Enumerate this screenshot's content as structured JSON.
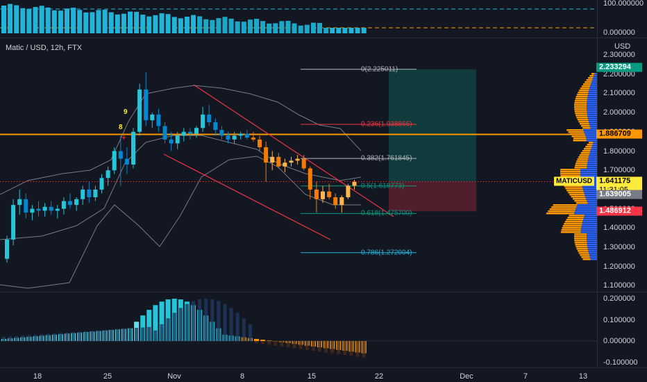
{
  "header": {
    "title": "Matic / USD, 12h, FTX",
    "currency": "USD"
  },
  "top_pane": {
    "axis_labels": [
      "100.000000",
      "0.000000"
    ]
  },
  "price_axis": {
    "labels": [
      "2.300000",
      "2.200000",
      "2.100000",
      "2.000000",
      "1.900000",
      "1.800000",
      "1.700000",
      "1.600000",
      "1.500000",
      "1.400000",
      "1.300000",
      "1.200000",
      "1.100000"
    ]
  },
  "price_tags": {
    "target": "2.233294",
    "level": "1.886709",
    "symbol": "MATICUSD",
    "last": "1.641175",
    "countdown": "11:31:05",
    "avg": "1.639005",
    "stop": "1.486912"
  },
  "fib_levels": [
    {
      "label": "0(2.225011)",
      "value": 2.225011,
      "color": "#b2b5be"
    },
    {
      "label": "0.236(1.938866)",
      "value": 1.938866,
      "color": "#f23645"
    },
    {
      "label": "0.382(1.761845)",
      "value": 1.761845,
      "color": "#b2b5be"
    },
    {
      "label": "0.5(1.618773)",
      "value": 1.618773,
      "color": "#089981"
    },
    {
      "label": "0.618(1.475700)",
      "value": 1.4757,
      "color": "#089981"
    },
    {
      "label": "0.786(1.272004)",
      "value": 1.272004,
      "color": "#22b3d8"
    }
  ],
  "td_marks": [
    "9",
    "8"
  ],
  "oscillator_axis": {
    "labels": [
      "0.200000",
      "0.100000",
      "0.000000",
      "-0.100000"
    ]
  },
  "time_axis": {
    "labels": [
      "18",
      "25",
      "Nov",
      "8",
      "15",
      "22",
      "Dec",
      "7",
      "13"
    ]
  },
  "chart_data": {
    "type": "candlestick",
    "symbol": "MATICUSD",
    "timeframe": "12h",
    "ylim": [
      1.1,
      2.35
    ],
    "candles_ohlc": [
      [
        1.24,
        1.36,
        1.22,
        1.34
      ],
      [
        1.34,
        1.55,
        1.31,
        1.52
      ],
      [
        1.52,
        1.6,
        1.47,
        1.55
      ],
      [
        1.55,
        1.58,
        1.45,
        1.48
      ],
      [
        1.48,
        1.52,
        1.44,
        1.5
      ],
      [
        1.5,
        1.54,
        1.46,
        1.49
      ],
      [
        1.49,
        1.53,
        1.46,
        1.51
      ],
      [
        1.51,
        1.54,
        1.47,
        1.49
      ],
      [
        1.49,
        1.52,
        1.45,
        1.5
      ],
      [
        1.5,
        1.56,
        1.47,
        1.54
      ],
      [
        1.54,
        1.58,
        1.5,
        1.52
      ],
      [
        1.52,
        1.56,
        1.49,
        1.55
      ],
      [
        1.55,
        1.62,
        1.52,
        1.6
      ],
      [
        1.6,
        1.64,
        1.53,
        1.56
      ],
      [
        1.56,
        1.62,
        1.54,
        1.6
      ],
      [
        1.6,
        1.68,
        1.58,
        1.66
      ],
      [
        1.66,
        1.72,
        1.62,
        1.7
      ],
      [
        1.7,
        1.82,
        1.68,
        1.8
      ],
      [
        1.8,
        1.88,
        1.62,
        1.76
      ],
      [
        1.76,
        1.82,
        1.68,
        1.73
      ],
      [
        1.73,
        1.92,
        1.71,
        1.9
      ],
      [
        1.9,
        2.15,
        1.88,
        2.12
      ],
      [
        2.12,
        2.21,
        1.93,
        1.96
      ],
      [
        1.96,
        2.0,
        1.92,
        1.99
      ],
      [
        1.99,
        2.02,
        1.9,
        1.93
      ],
      [
        1.93,
        1.95,
        1.84,
        1.86
      ],
      [
        1.86,
        1.9,
        1.8,
        1.84
      ],
      [
        1.84,
        1.9,
        1.81,
        1.88
      ],
      [
        1.88,
        1.92,
        1.85,
        1.9
      ],
      [
        1.9,
        1.92,
        1.86,
        1.89
      ],
      [
        1.89,
        1.93,
        1.87,
        1.92
      ],
      [
        1.92,
        2.03,
        1.9,
        1.99
      ],
      [
        1.99,
        2.04,
        1.93,
        1.95
      ],
      [
        1.95,
        1.97,
        1.88,
        1.91
      ],
      [
        1.91,
        1.93,
        1.86,
        1.88
      ],
      [
        1.88,
        1.9,
        1.84,
        1.86
      ],
      [
        1.86,
        1.9,
        1.84,
        1.88
      ],
      [
        1.88,
        1.9,
        1.86,
        1.89
      ],
      [
        1.89,
        1.91,
        1.86,
        1.87
      ],
      [
        1.87,
        1.9,
        1.85,
        1.86
      ],
      [
        1.86,
        1.88,
        1.8,
        1.82
      ],
      [
        1.82,
        1.85,
        1.64,
        1.74
      ],
      [
        1.74,
        1.8,
        1.7,
        1.77
      ],
      [
        1.77,
        1.79,
        1.71,
        1.72
      ],
      [
        1.72,
        1.76,
        1.69,
        1.74
      ],
      [
        1.74,
        1.77,
        1.72,
        1.75
      ],
      [
        1.75,
        1.78,
        1.73,
        1.76
      ],
      [
        1.76,
        1.78,
        1.7,
        1.71
      ],
      [
        1.71,
        1.72,
        1.55,
        1.6
      ],
      [
        1.6,
        1.64,
        1.48,
        1.55
      ],
      [
        1.55,
        1.62,
        1.53,
        1.59
      ],
      [
        1.59,
        1.63,
        1.55,
        1.56
      ],
      [
        1.56,
        1.58,
        1.5,
        1.52
      ],
      [
        1.52,
        1.57,
        1.48,
        1.56
      ],
      [
        1.56,
        1.63,
        1.55,
        1.62
      ],
      [
        1.62,
        1.65,
        1.6,
        1.64
      ]
    ],
    "fib_retracement": [
      2.225011,
      1.938866,
      1.761845,
      1.618773,
      1.4757,
      1.272004
    ],
    "horizontal_level": 1.886709,
    "last_price": 1.641175
  }
}
